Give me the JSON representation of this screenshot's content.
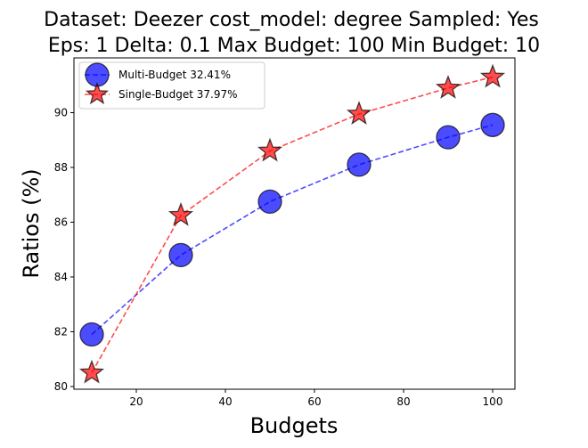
{
  "chart_data": {
    "type": "line",
    "title_line1": "Dataset: Deezer cost_model: degree Sampled: Yes",
    "title_line2": "Eps: 1 Delta: 0.1 Max Budget: 100 Min Budget: 10",
    "xlabel": "Budgets",
    "ylabel": "Ratios (%)",
    "xlim": [
      6,
      105
    ],
    "ylim": [
      79.9,
      92.0
    ],
    "xticks": [
      20,
      40,
      60,
      80,
      100
    ],
    "yticks": [
      80,
      82,
      84,
      86,
      88,
      90
    ],
    "legend_position": "top-left",
    "x": [
      10,
      30,
      50,
      70,
      90,
      100
    ],
    "series": [
      {
        "name": "Multi-Budget 32.41%",
        "marker": "circle",
        "color": "#0000ff",
        "values": [
          81.9,
          84.8,
          86.75,
          88.1,
          89.1,
          89.55
        ]
      },
      {
        "name": "Single-Budget 37.97%",
        "marker": "star",
        "color": "#ff0000",
        "values": [
          80.5,
          86.25,
          88.6,
          89.95,
          90.9,
          91.3
        ]
      }
    ]
  }
}
